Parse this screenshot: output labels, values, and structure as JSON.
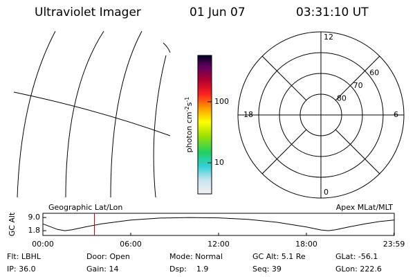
{
  "header": {
    "instrument": "Ultraviolet Imager",
    "date": "01 Jun 07",
    "time": "03:31:10 UT"
  },
  "colorbar": {
    "label": {
      "base": "photon cm",
      "exp1": "-2",
      "unit2": "s",
      "exp2": "-1"
    },
    "scale": "log",
    "lim": [
      3.1,
      575
    ],
    "ticks": [
      10,
      100
    ]
  },
  "polar": {
    "rlim": [
      90,
      50
    ],
    "rings": [
      80,
      70,
      60
    ],
    "hours": [
      12,
      18,
      6,
      0
    ]
  },
  "orbit": {
    "title_left": "Geographic Lat/Lon",
    "title_right": "Apex MLat/MLT",
    "ylabel": "GC Alt",
    "xlim": [
      0,
      24
    ],
    "ylim": [
      -0.8,
      11.3
    ],
    "xticks": [
      {
        "value": 0,
        "label": "00:00"
      },
      {
        "value": 6,
        "label": "06:00"
      },
      {
        "value": 12,
        "label": "12:00"
      },
      {
        "value": 18,
        "label": "18:00"
      },
      {
        "value": 23.98,
        "label": "23:59"
      }
    ],
    "yticks": [
      {
        "value": 9,
        "label": "9.0"
      },
      {
        "value": 1.8,
        "label": "1.8"
      }
    ],
    "x": [
      0,
      1,
      1.5,
      2,
      3,
      4,
      6,
      8,
      10,
      12,
      14,
      16,
      18,
      19,
      19.5,
      20,
      21,
      22,
      23,
      23.98
    ],
    "values": [
      5.5,
      2.5,
      1.8,
      2.3,
      4,
      5.5,
      7.6,
      8.7,
      9.0,
      8.8,
      8.0,
      6.4,
      3.8,
      2.2,
      1.8,
      2.3,
      4,
      5.5,
      6.8,
      7.6
    ],
    "marker_x": 3.52,
    "marker_color": "#cc0000"
  },
  "status": [
    [
      "Flt: LBHL",
      "Door: Open",
      "Mode: Normal",
      "GC Alt: 5.1 Re",
      "GLat: -56.1"
    ],
    [
      "IP: 36.0",
      "Gain: 14",
      "Dsp:    1.9",
      "Seq: 39",
      "GLon: 222.6"
    ]
  ]
}
